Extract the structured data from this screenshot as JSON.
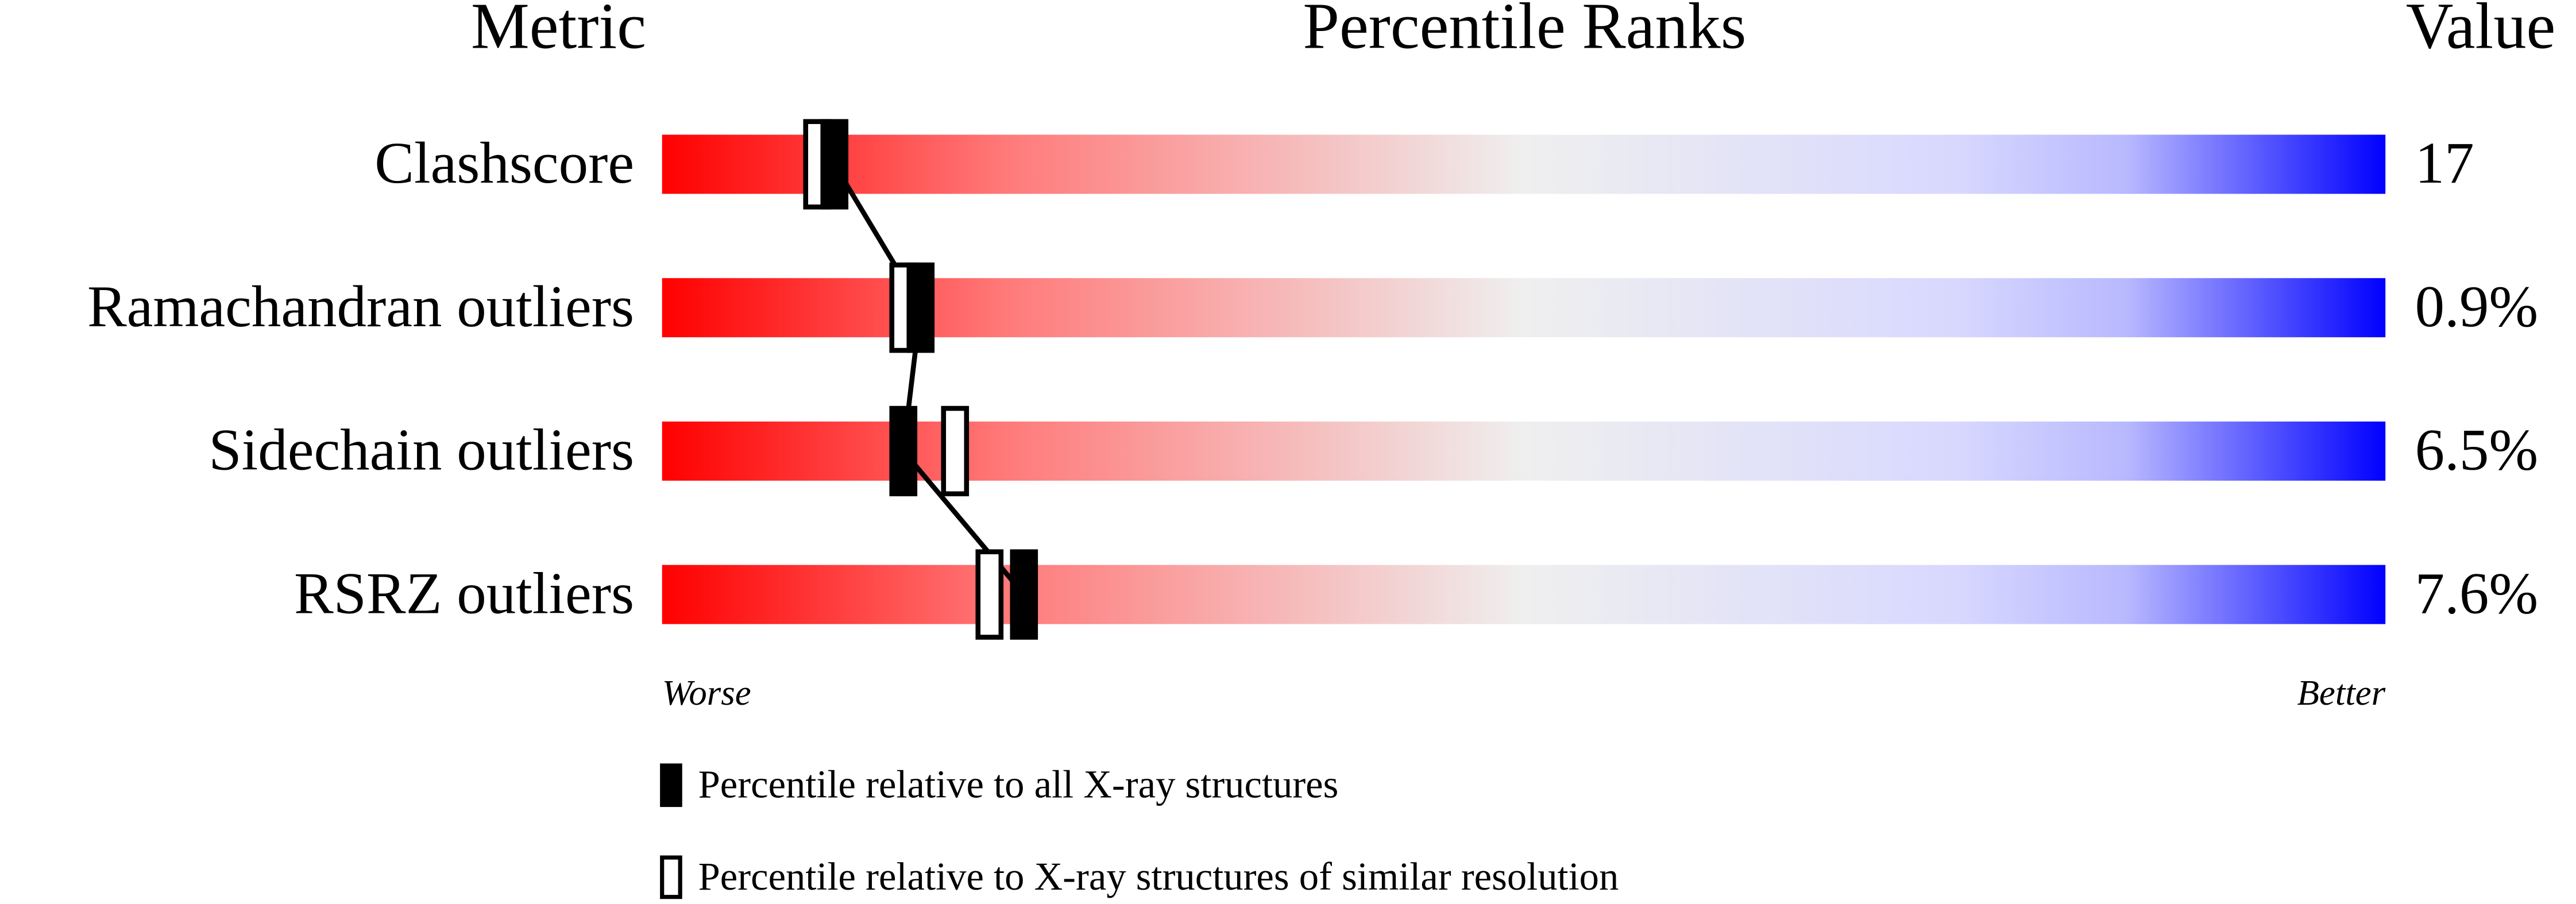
{
  "chart_data": {
    "type": "slider",
    "headers": [
      "Metric",
      "Percentile Ranks",
      "Value"
    ],
    "categories": [
      "Clashscore",
      "Ramachandran outliers",
      "Sidechain outliers",
      "RSRZ outliers"
    ],
    "metric_values": [
      "17",
      "0.9%",
      "6.5%",
      "7.6%"
    ],
    "series": [
      {
        "name": "Percentile relative to all X-ray structures",
        "color": "#000000",
        "values": [
          10,
          15,
          14,
          21
        ],
        "connected": true
      },
      {
        "name": "Percentile relative to X-ray structures of similar resolution",
        "color": "#ffffff",
        "values": [
          9,
          14,
          17,
          19
        ],
        "connected": false
      }
    ],
    "xlim": [
      0,
      100
    ],
    "worse_label": "Worse",
    "better_label": "Better"
  }
}
